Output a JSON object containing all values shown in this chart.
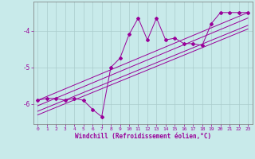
{
  "xlabel": "Windchill (Refroidissement éolien,°C)",
  "xlim": [
    -0.5,
    23.5
  ],
  "ylim": [
    -6.55,
    -3.2
  ],
  "yticks": [
    -6,
    -5,
    -4
  ],
  "xticks": [
    0,
    1,
    2,
    3,
    4,
    5,
    6,
    7,
    8,
    9,
    10,
    11,
    12,
    13,
    14,
    15,
    16,
    17,
    18,
    19,
    20,
    21,
    22,
    23
  ],
  "line_color": "#990099",
  "bg_color": "#c8eaea",
  "grid_color": "#aacccc",
  "data_x": [
    0,
    1,
    2,
    3,
    4,
    5,
    6,
    7,
    8,
    9,
    10,
    11,
    12,
    13,
    14,
    15,
    16,
    17,
    18,
    19,
    20,
    21,
    22,
    23
  ],
  "data_y": [
    -5.9,
    -5.85,
    -5.85,
    -5.9,
    -5.85,
    -5.9,
    -6.15,
    -6.35,
    -5.0,
    -4.75,
    -4.1,
    -3.65,
    -4.25,
    -3.65,
    -4.25,
    -4.2,
    -4.35,
    -4.35,
    -4.4,
    -3.8,
    -3.5,
    -3.5,
    -3.5,
    -3.5
  ],
  "line1_x": [
    0,
    23
  ],
  "line1_y": [
    -5.9,
    -3.5
  ],
  "line2_x": [
    0,
    23
  ],
  "line2_y": [
    -6.05,
    -3.65
  ],
  "line3_x": [
    0,
    23
  ],
  "line3_y": [
    -6.2,
    -3.85
  ],
  "line4_x": [
    0,
    23
  ],
  "line4_y": [
    -6.3,
    -3.95
  ]
}
